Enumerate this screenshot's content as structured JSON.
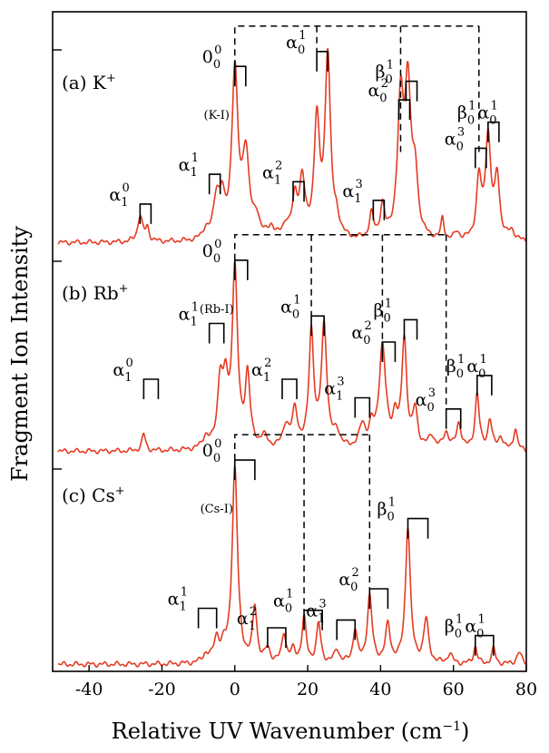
{
  "chart_data": {
    "type": "line",
    "xlabel": "Relative UV Wavenumber (cm",
    "xlabel_sup": "−1",
    "xlabel_close": ")",
    "ylabel": "Fragment Ion Intensity",
    "xlim": [
      -50,
      80
    ],
    "xticks": [
      -40,
      -20,
      0,
      20,
      40,
      60,
      80
    ],
    "trace_color": "#e53b23",
    "panels": [
      {
        "label": "(a) K",
        "label_sup": "+",
        "origin_label": "(K-I)",
        "peaks": [
          {
            "x": -26,
            "h": 0.14,
            "w": 0.8
          },
          {
            "x": -24,
            "h": 0.07,
            "w": 0.6
          },
          {
            "x": -8,
            "h": 0.05,
            "w": 0.9
          },
          {
            "x": -5,
            "h": 0.22,
            "w": 1.0
          },
          {
            "x": -3.5,
            "h": 0.18,
            "w": 0.8
          },
          {
            "x": 0,
            "h": 0.9,
            "w": 1.0
          },
          {
            "x": 3,
            "h": 0.45,
            "w": 1.1
          },
          {
            "x": 6,
            "h": 0.1,
            "w": 1.0
          },
          {
            "x": 10,
            "h": 0.06,
            "w": 1.0
          },
          {
            "x": 14,
            "h": 0.07,
            "w": 1.0
          },
          {
            "x": 16.5,
            "h": 0.2,
            "w": 0.9
          },
          {
            "x": 18.5,
            "h": 0.3,
            "w": 0.9
          },
          {
            "x": 22.5,
            "h": 0.62,
            "w": 0.9
          },
          {
            "x": 25.5,
            "h": 0.98,
            "w": 0.9
          },
          {
            "x": 28,
            "h": 0.08,
            "w": 0.9
          },
          {
            "x": 37.5,
            "h": 0.13,
            "w": 0.7
          },
          {
            "x": 40.5,
            "h": 0.17,
            "w": 0.7
          },
          {
            "x": 45.5,
            "h": 0.7,
            "w": 1.0
          },
          {
            "x": 47.5,
            "h": 0.78,
            "w": 1.0
          },
          {
            "x": 49.5,
            "h": 0.3,
            "w": 0.9
          },
          {
            "x": 57,
            "h": 0.11,
            "w": 0.5
          },
          {
            "x": 61,
            "h": 0.04,
            "w": 0.8
          },
          {
            "x": 67,
            "h": 0.32,
            "w": 0.8
          },
          {
            "x": 69.5,
            "h": 0.55,
            "w": 0.9
          },
          {
            "x": 72,
            "h": 0.33,
            "w": 0.8
          },
          {
            "x": 76,
            "h": 0.05,
            "w": 1.0
          }
        ],
        "brackets": [
          {
            "label": "α",
            "sub": "1",
            "sup": "0",
            "x1": -26,
            "x2": -23,
            "level": 0.22
          },
          {
            "label": "α",
            "sub": "1",
            "sup": "1",
            "x1": -7,
            "x2": -4,
            "level": 0.38
          },
          {
            "label": "0",
            "sub": "0",
            "sup": "0",
            "x1": 0,
            "x2": 3,
            "level": 0.96
          },
          {
            "label": "α",
            "sub": "1",
            "sup": "2",
            "x1": 16,
            "x2": 19,
            "level": 0.34
          },
          {
            "label": "α",
            "sub": "0",
            "sup": "1",
            "x1": 22.5,
            "x2": 25.5,
            "level": 1.04
          },
          {
            "label": "α",
            "sub": "1",
            "sup": "3",
            "x1": 38,
            "x2": 41,
            "level": 0.24
          },
          {
            "label": "α",
            "sub": "0",
            "sup": "2",
            "x1": 45,
            "x2": 48,
            "level": 0.78
          },
          {
            "label": "β",
            "sub": "0",
            "sup": "1",
            "x1": 47,
            "x2": 50,
            "level": 0.88
          },
          {
            "label": "α",
            "sub": "0",
            "sup": "3",
            "x1": 66,
            "x2": 69,
            "level": 0.52
          },
          {
            "label": "β",
            "sub": "0",
            "sup": "1",
            "extra": "α",
            "extra_sub": "0",
            "extra_sup": "1",
            "x1": 69.5,
            "x2": 72.5,
            "level": 0.66
          }
        ],
        "dashed": {
          "x_start": 0,
          "x_end": 67,
          "joints": [
            22.5,
            45.5,
            67
          ]
        }
      },
      {
        "label": "(b) Rb",
        "label_sup": "+",
        "origin_label": "(Rb-I)",
        "peaks": [
          {
            "x": -25,
            "h": 0.09,
            "w": 0.6
          },
          {
            "x": -8,
            "h": 0.06,
            "w": 1.0
          },
          {
            "x": -4,
            "h": 0.35,
            "w": 0.9
          },
          {
            "x": -2.5,
            "h": 0.28,
            "w": 0.8
          },
          {
            "x": 0,
            "h": 0.95,
            "w": 0.9
          },
          {
            "x": 3.5,
            "h": 0.38,
            "w": 0.8
          },
          {
            "x": 8,
            "h": 0.06,
            "w": 1.2
          },
          {
            "x": 14,
            "h": 0.12,
            "w": 1.0
          },
          {
            "x": 16.5,
            "h": 0.2,
            "w": 0.9
          },
          {
            "x": 21,
            "h": 0.62,
            "w": 0.8
          },
          {
            "x": 24.5,
            "h": 0.66,
            "w": 0.9
          },
          {
            "x": 28,
            "h": 0.08,
            "w": 1.0
          },
          {
            "x": 35,
            "h": 0.12,
            "w": 1.0
          },
          {
            "x": 37.5,
            "h": 0.1,
            "w": 0.8
          },
          {
            "x": 40.5,
            "h": 0.55,
            "w": 1.1
          },
          {
            "x": 44,
            "h": 0.15,
            "w": 0.8
          },
          {
            "x": 46.5,
            "h": 0.58,
            "w": 0.8
          },
          {
            "x": 49.5,
            "h": 0.2,
            "w": 0.8
          },
          {
            "x": 54,
            "h": 0.07,
            "w": 1.0
          },
          {
            "x": 58,
            "h": 0.09,
            "w": 0.9
          },
          {
            "x": 61.5,
            "h": 0.14,
            "w": 0.8
          },
          {
            "x": 66.5,
            "h": 0.3,
            "w": 0.7
          },
          {
            "x": 70,
            "h": 0.16,
            "w": 0.7
          },
          {
            "x": 73,
            "h": 0.07,
            "w": 0.8
          },
          {
            "x": 77,
            "h": 0.12,
            "w": 0.6
          }
        ],
        "brackets": [
          {
            "label": "α",
            "sub": "1",
            "sup": "0",
            "x1": -25,
            "x2": -21,
            "level": 0.4
          },
          {
            "label": "α",
            "sub": "1",
            "sup": "1",
            "x1": -7,
            "x2": -3,
            "level": 0.7
          },
          {
            "label": "0",
            "sub": "0",
            "sup": "0",
            "x1": 0,
            "x2": 3.5,
            "level": 1.04
          },
          {
            "label": "α",
            "sub": "1",
            "sup": "2",
            "x1": 13,
            "x2": 17,
            "level": 0.4
          },
          {
            "label": "α",
            "sub": "0",
            "sup": "1",
            "x1": 21,
            "x2": 24.5,
            "level": 0.74
          },
          {
            "label": "α",
            "sub": "1",
            "sup": "3",
            "x1": 33,
            "x2": 37,
            "level": 0.3
          },
          {
            "label": "α",
            "sub": "0",
            "sup": "2",
            "x1": 40.5,
            "x2": 44,
            "level": 0.6
          },
          {
            "label": "β",
            "sub": "0",
            "sup": "1",
            "x1": 46.5,
            "x2": 50,
            "level": 0.72
          },
          {
            "label": "α",
            "sub": "0",
            "sup": "3",
            "x1": 58,
            "x2": 62,
            "level": 0.24
          },
          {
            "label": "β",
            "sub": "0",
            "sup": "1",
            "extra": "α",
            "extra_sub": "0",
            "extra_sup": "1",
            "x1": 66.5,
            "x2": 70.5,
            "level": 0.42
          }
        ],
        "dashed": {
          "x_start": 0,
          "x_end": 58,
          "joints": [
            21,
            40.5,
            58
          ]
        }
      },
      {
        "label": "(c) Cs",
        "label_sup": "+",
        "origin_label": "(Cs-I)",
        "peaks": [
          {
            "x": -8,
            "h": 0.04,
            "w": 1.0
          },
          {
            "x": -5,
            "h": 0.12,
            "w": 0.9
          },
          {
            "x": -3,
            "h": 0.06,
            "w": 0.8
          },
          {
            "x": 0,
            "h": 1.0,
            "w": 0.9
          },
          {
            "x": 5.5,
            "h": 0.28,
            "w": 0.7
          },
          {
            "x": 9,
            "h": 0.07,
            "w": 0.8
          },
          {
            "x": 13.5,
            "h": 0.15,
            "w": 0.7
          },
          {
            "x": 16,
            "h": 0.06,
            "w": 0.8
          },
          {
            "x": 19,
            "h": 0.23,
            "w": 0.7
          },
          {
            "x": 23,
            "h": 0.2,
            "w": 0.7
          },
          {
            "x": 28,
            "h": 0.07,
            "w": 0.8
          },
          {
            "x": 33,
            "h": 0.17,
            "w": 0.7
          },
          {
            "x": 37,
            "h": 0.34,
            "w": 0.8
          },
          {
            "x": 42,
            "h": 0.19,
            "w": 0.8
          },
          {
            "x": 47.5,
            "h": 0.7,
            "w": 0.8
          },
          {
            "x": 52.5,
            "h": 0.22,
            "w": 0.8
          },
          {
            "x": 59,
            "h": 0.05,
            "w": 0.8
          },
          {
            "x": 66,
            "h": 0.09,
            "w": 0.6
          },
          {
            "x": 71,
            "h": 0.08,
            "w": 0.6
          },
          {
            "x": 78,
            "h": 0.06,
            "w": 0.8
          }
        ],
        "brackets": [
          {
            "label": "α",
            "sub": "1",
            "sup": "1",
            "x1": -10,
            "x2": -5,
            "level": 0.3
          },
          {
            "label": "0",
            "sub": "0",
            "sup": "0",
            "x1": 0,
            "x2": 5.5,
            "level": 1.06
          },
          {
            "label": "α",
            "sub": "1",
            "sup": "2",
            "x1": 9,
            "x2": 14,
            "level": 0.2
          },
          {
            "label": "α",
            "sub": "0",
            "sup": "1",
            "x1": 19,
            "x2": 24,
            "level": 0.29
          },
          {
            "label": "α",
            "sub": "1",
            "sup": "3",
            "x1": 28,
            "x2": 33,
            "level": 0.24
          },
          {
            "label": "α",
            "sub": "0",
            "sup": "2",
            "x1": 37,
            "x2": 42,
            "level": 0.4
          },
          {
            "label": "β",
            "sub": "0",
            "sup": "1",
            "x1": 47.5,
            "x2": 53,
            "level": 0.76
          },
          {
            "label": "β",
            "sub": "0",
            "sup": "1",
            "extra": "α",
            "extra_sub": "0",
            "extra_sup": "1",
            "x1": 66,
            "x2": 71,
            "level": 0.16
          }
        ],
        "dashed": {
          "x_start": 0,
          "x_end": 37,
          "joints": [
            19,
            37
          ]
        }
      }
    ]
  }
}
